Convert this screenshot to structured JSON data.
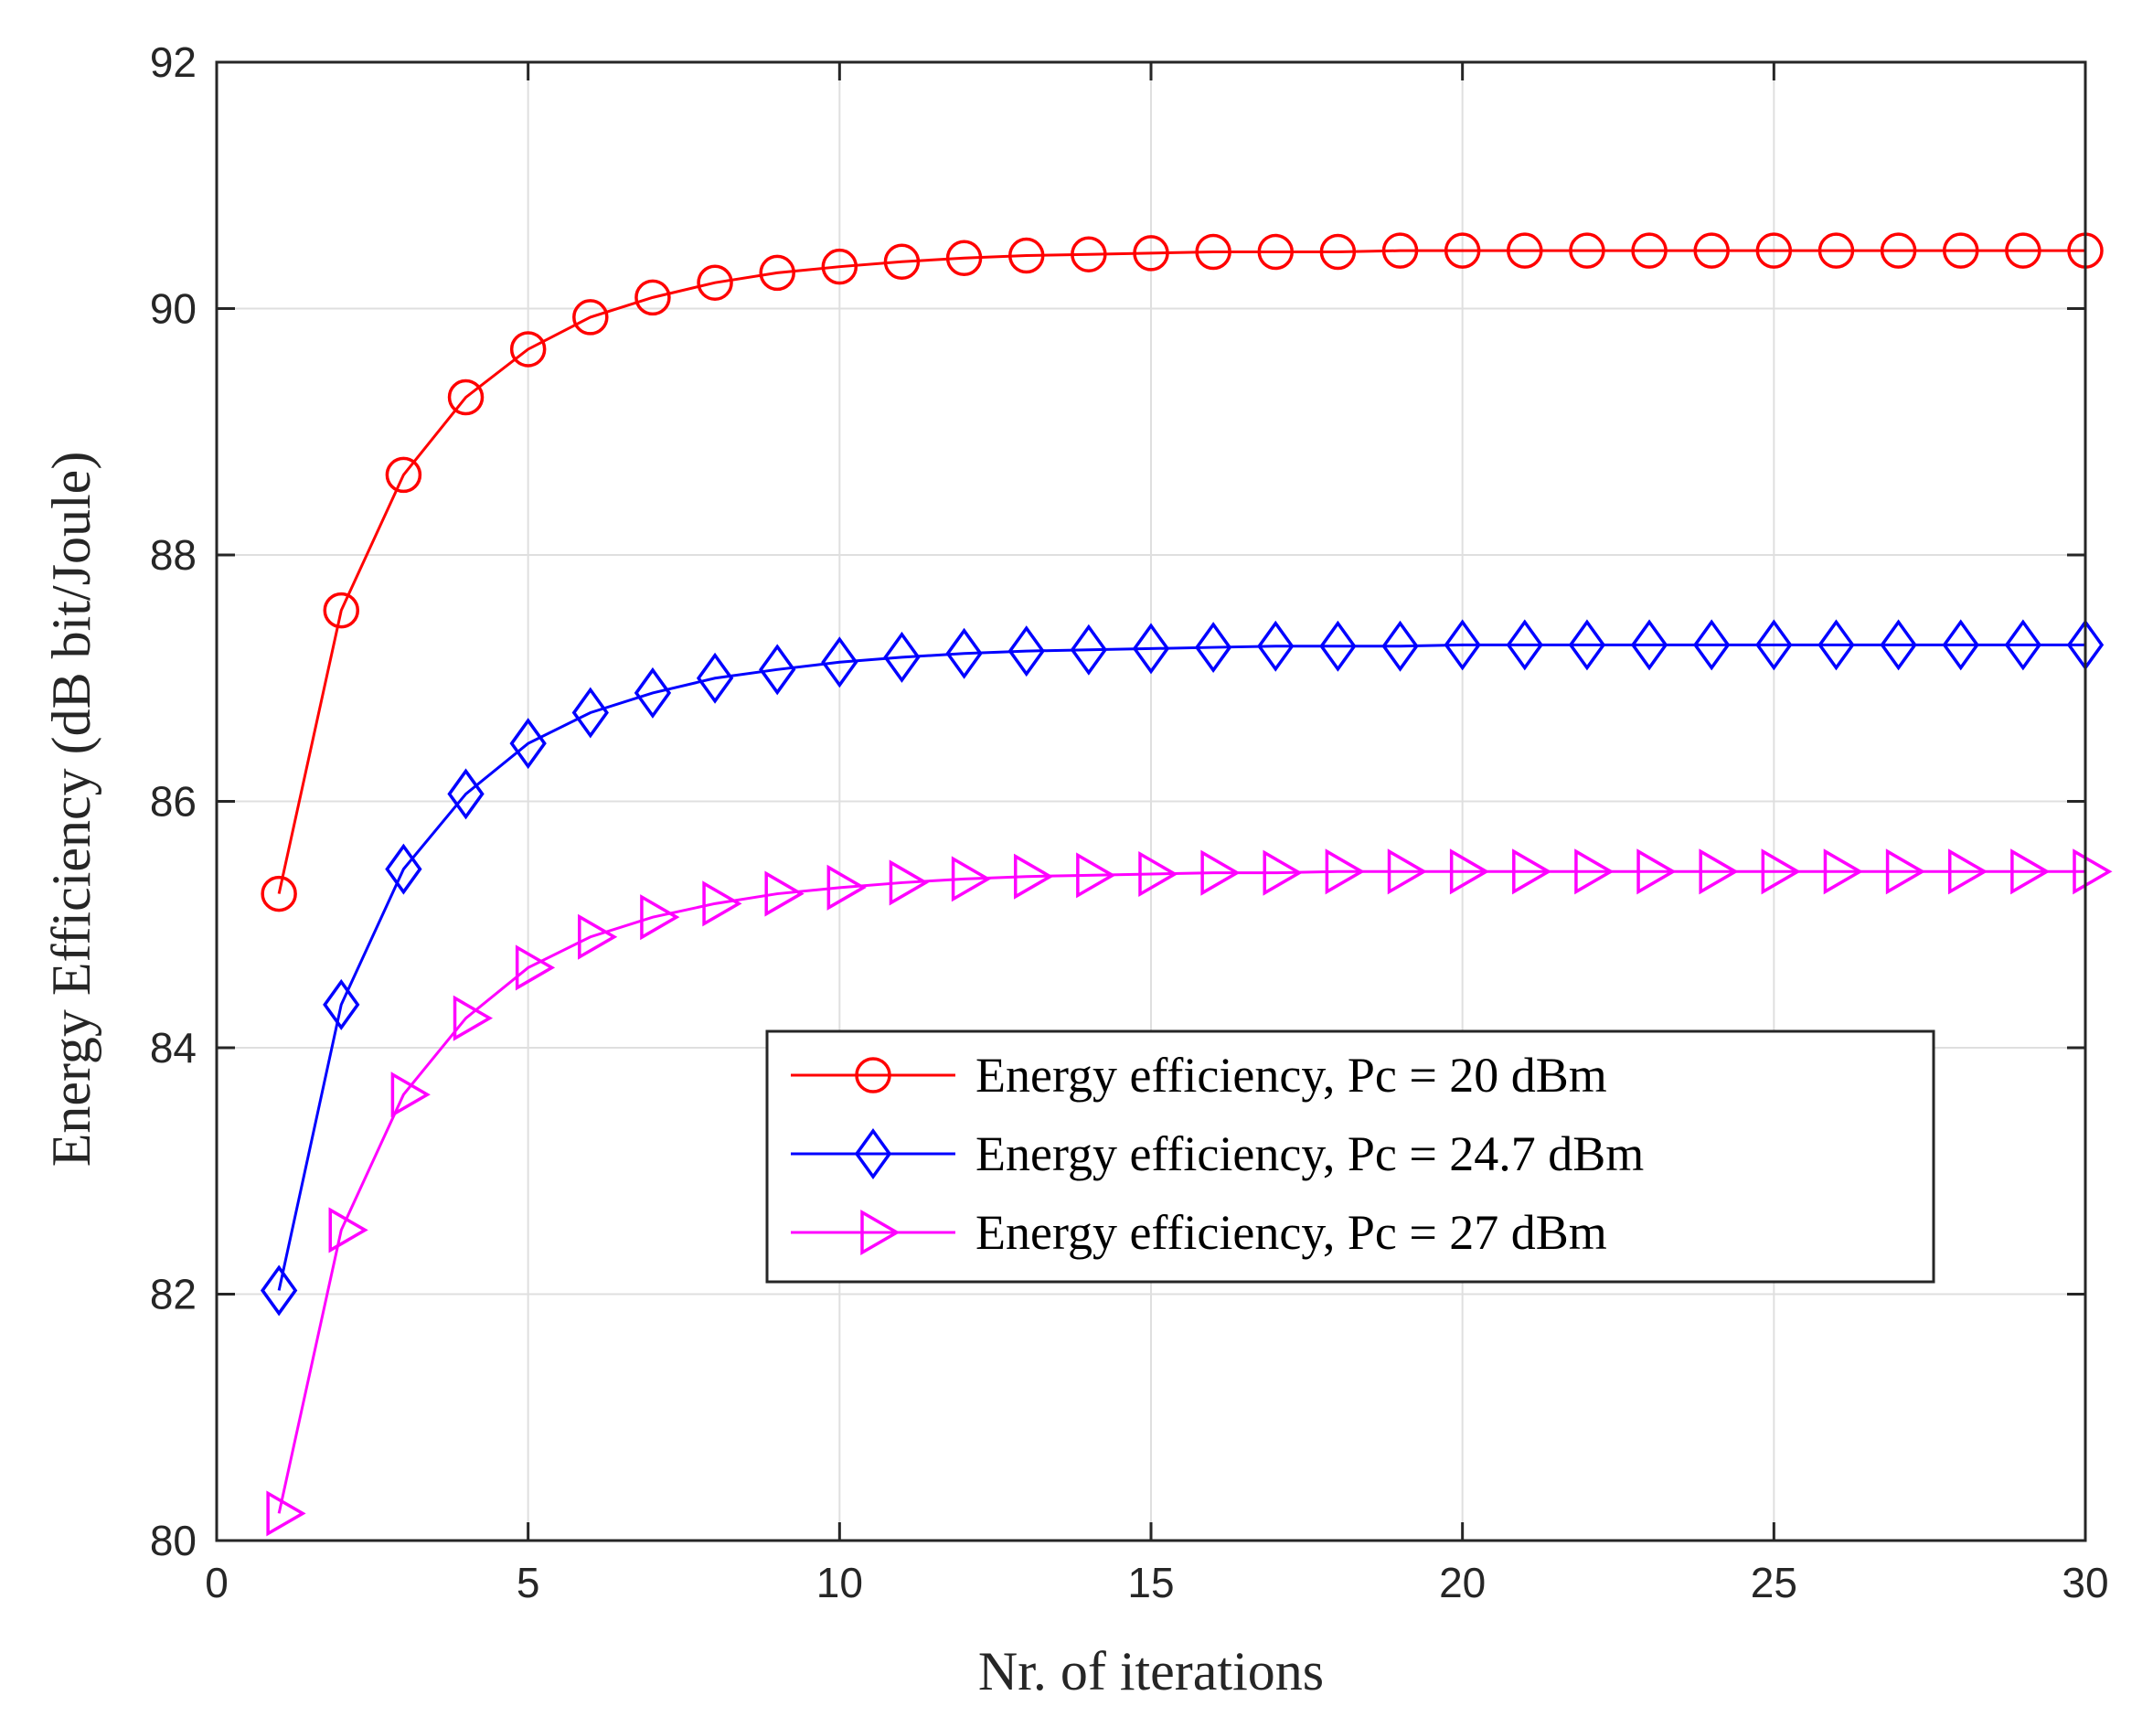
{
  "chart_data": {
    "type": "line",
    "title": "",
    "xlabel": "Nr. of iterations",
    "ylabel": "Energy Efficiency (dB bit/Joule)",
    "xlim": [
      0,
      30
    ],
    "ylim": [
      80,
      92
    ],
    "xticks": [
      0,
      5,
      10,
      15,
      20,
      25,
      30
    ],
    "yticks": [
      80,
      82,
      84,
      86,
      88,
      90,
      92
    ],
    "grid": true,
    "legend_position": "center-right",
    "x": [
      1,
      2,
      3,
      4,
      5,
      6,
      7,
      8,
      9,
      10,
      11,
      12,
      13,
      14,
      15,
      16,
      17,
      18,
      19,
      20,
      21,
      22,
      23,
      24,
      25,
      26,
      27,
      28,
      29,
      30
    ],
    "series": [
      {
        "name": "Energy efficiency, Pc = 20 dBm",
        "color": "#ff0000",
        "marker": "circle",
        "values": [
          85.25,
          87.55,
          88.65,
          89.28,
          89.67,
          89.93,
          90.09,
          90.21,
          90.29,
          90.34,
          90.38,
          90.41,
          90.43,
          90.44,
          90.45,
          90.46,
          90.46,
          90.46,
          90.47,
          90.47,
          90.47,
          90.47,
          90.47,
          90.47,
          90.47,
          90.47,
          90.47,
          90.47,
          90.47,
          90.47
        ]
      },
      {
        "name": "Energy efficiency, Pc = 24.7 dBm",
        "color": "#0000ff",
        "marker": "diamond",
        "values": [
          82.03,
          84.35,
          85.45,
          86.06,
          86.47,
          86.72,
          86.88,
          87.0,
          87.07,
          87.13,
          87.17,
          87.2,
          87.22,
          87.23,
          87.24,
          87.25,
          87.26,
          87.26,
          87.26,
          87.27,
          87.27,
          87.27,
          87.27,
          87.27,
          87.27,
          87.27,
          87.27,
          87.27,
          87.27,
          87.27
        ]
      },
      {
        "name": "Energy efficiency, Pc = 27 dBm",
        "color": "#ff00ff",
        "marker": "triangle-right",
        "values": [
          80.22,
          82.52,
          83.62,
          84.24,
          84.65,
          84.9,
          85.06,
          85.17,
          85.25,
          85.3,
          85.34,
          85.37,
          85.39,
          85.4,
          85.41,
          85.42,
          85.42,
          85.43,
          85.43,
          85.43,
          85.43,
          85.43,
          85.43,
          85.43,
          85.43,
          85.43,
          85.43,
          85.43,
          85.43,
          85.43
        ]
      }
    ]
  }
}
